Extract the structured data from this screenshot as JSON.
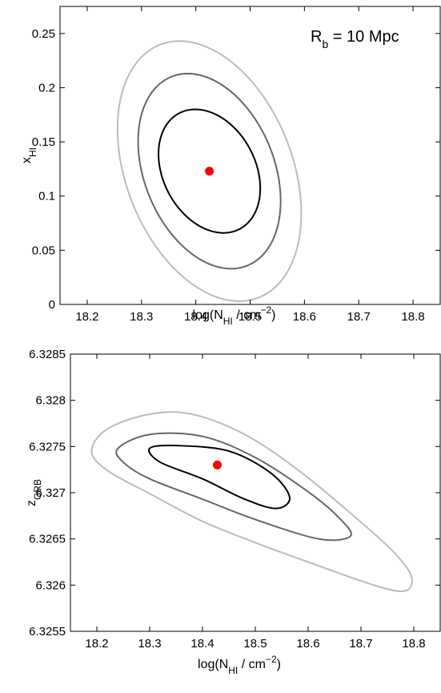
{
  "chart_data": [
    {
      "type": "contour",
      "annotation": {
        "main": "R",
        "sub": "b",
        "rest": " = 10 Mpc"
      },
      "xlabel": {
        "pre": "log(N",
        "sub": "HI",
        "mid": " / cm",
        "sup": "−2",
        "post": ")"
      },
      "ylabel": {
        "main": "x",
        "sub": "HI"
      },
      "xlim": [
        18.15,
        18.85
      ],
      "ylim": [
        0,
        0.275
      ],
      "xticks": [
        18.2,
        18.3,
        18.4,
        18.5,
        18.6,
        18.7,
        18.8
      ],
      "yticks": [
        0,
        0.05,
        0.1,
        0.15,
        0.2,
        0.25
      ],
      "xtick_labels": [
        "18.2",
        "18.3",
        "18.4",
        "18.5",
        "18.6",
        "18.7",
        "18.8"
      ],
      "ytick_labels": [
        "0",
        "0.05",
        "0.1",
        "0.15",
        "0.2",
        "0.25"
      ],
      "best_fit": {
        "x": 18.425,
        "y": 0.123,
        "color": "#ff0000"
      },
      "contours": [
        {
          "level": 1,
          "color": "#000000",
          "x0": 18.425,
          "y0": 0.123,
          "ax": 0.09,
          "bx": -0.026,
          "ay": 0.0,
          "by": 0.057
        },
        {
          "level": 2,
          "color": "#666666",
          "x0": 18.425,
          "y0": 0.123,
          "ax": 0.125,
          "bx": -0.04,
          "ay": 0.0,
          "by": 0.09
        },
        {
          "level": 3,
          "color": "#bbbbbb",
          "x0": 18.425,
          "y0": 0.123,
          "ax": 0.16,
          "bx": -0.055,
          "ay": 0.0,
          "by": 0.12
        }
      ],
      "grid": false
    },
    {
      "type": "contour",
      "xlabel": {
        "pre": "log(N",
        "sub": "HI",
        "mid": " / cm",
        "sup": "−2",
        "post": ")"
      },
      "ylabel": {
        "main": "z",
        "sub": "GRB"
      },
      "xlim": [
        18.15,
        18.85
      ],
      "ylim": [
        6.3255,
        6.3285
      ],
      "xticks": [
        18.2,
        18.3,
        18.4,
        18.5,
        18.6,
        18.7,
        18.8
      ],
      "yticks": [
        6.3255,
        6.326,
        6.3265,
        6.327,
        6.3275,
        6.328,
        6.3285
      ],
      "xtick_labels": [
        "18.2",
        "18.3",
        "18.4",
        "18.5",
        "18.6",
        "18.7",
        "18.8"
      ],
      "ytick_labels": [
        "6.3255",
        "6.326",
        "6.3265",
        "6.327",
        "6.3275",
        "6.328",
        "6.3285"
      ],
      "best_fit": {
        "x": 18.428,
        "y": 6.3273,
        "color": "#ff0000"
      },
      "contours": [
        {
          "level": 1,
          "color": "#000000",
          "points": [
            [
              18.3,
              6.32748
            ],
            [
              18.35,
              6.32751
            ],
            [
              18.45,
              6.32745
            ],
            [
              18.53,
              6.32721
            ],
            [
              18.565,
              6.32695
            ],
            [
              18.54,
              6.32683
            ],
            [
              18.48,
              6.32693
            ],
            [
              18.4,
              6.32715
            ],
            [
              18.32,
              6.32733
            ]
          ]
        },
        {
          "level": 2,
          "color": "#666666",
          "points": [
            [
              18.24,
              6.32748
            ],
            [
              18.3,
              6.32763
            ],
            [
              18.4,
              6.32761
            ],
            [
              18.5,
              6.32738
            ],
            [
              18.6,
              6.32701
            ],
            [
              18.66,
              6.32672
            ],
            [
              18.68,
              6.32653
            ],
            [
              18.62,
              6.3265
            ],
            [
              18.5,
              6.32671
            ],
            [
              18.4,
              6.32693
            ],
            [
              18.3,
              6.32715
            ],
            [
              18.25,
              6.32733
            ]
          ]
        },
        {
          "level": 3,
          "color": "#bbbbbb",
          "points": [
            [
              18.19,
              6.32745
            ],
            [
              18.22,
              6.32769
            ],
            [
              18.3,
              6.32785
            ],
            [
              18.38,
              6.32785
            ],
            [
              18.48,
              6.32763
            ],
            [
              18.58,
              6.32725
            ],
            [
              18.68,
              6.32678
            ],
            [
              18.76,
              6.32637
            ],
            [
              18.795,
              6.3261
            ],
            [
              18.785,
              6.32594
            ],
            [
              18.73,
              6.32599
            ],
            [
              18.6,
              6.32625
            ],
            [
              18.5,
              6.32646
            ],
            [
              18.4,
              6.32669
            ],
            [
              18.3,
              6.32699
            ],
            [
              18.22,
              6.32724
            ]
          ]
        }
      ],
      "grid": false
    }
  ]
}
